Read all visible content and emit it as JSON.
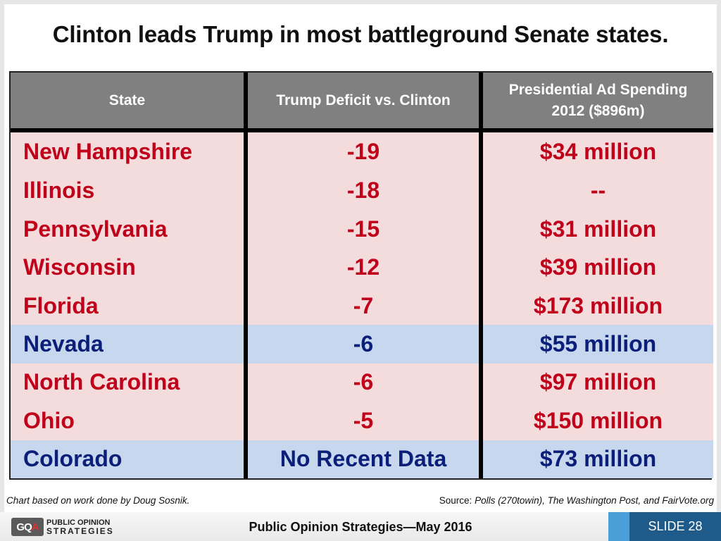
{
  "title": "Clinton leads Trump in most battleground Senate states.",
  "chart_data": {
    "type": "table",
    "columns": [
      "State",
      "Trump Deficit vs. Clinton",
      "Presidential Ad Spending 2012 ($896m)"
    ],
    "rows": [
      {
        "state": "New Hampshire",
        "deficit": "-19",
        "spending": "$34 million",
        "highlight": "red"
      },
      {
        "state": "Illinois",
        "deficit": "-18",
        "spending": "--",
        "highlight": "red"
      },
      {
        "state": "Pennsylvania",
        "deficit": "-15",
        "spending": "$31 million",
        "highlight": "red"
      },
      {
        "state": "Wisconsin",
        "deficit": "-12",
        "spending": "$39 million",
        "highlight": "red"
      },
      {
        "state": "Florida",
        "deficit": "-7",
        "spending": "$173 million",
        "highlight": "red"
      },
      {
        "state": "Nevada",
        "deficit": "-6",
        "spending": "$55 million",
        "highlight": "blue"
      },
      {
        "state": "North Carolina",
        "deficit": "-6",
        "spending": "$97 million",
        "highlight": "red"
      },
      {
        "state": "Ohio",
        "deficit": "-5",
        "spending": "$150 million",
        "highlight": "red"
      },
      {
        "state": "Colorado",
        "deficit": "No Recent Data",
        "spending": "$73 million",
        "highlight": "blue"
      }
    ],
    "colors": {
      "red_row_bg": "#f4dcdc",
      "red_text": "#c0001a",
      "blue_row_bg": "#c7d8ee",
      "blue_text": "#0b1f7a",
      "header_bg": "#808080"
    }
  },
  "header": {
    "col1": "State",
    "col2": "Trump Deficit vs. Clinton",
    "col3_line1": "Presidential Ad Spending",
    "col3_line2": "2012 ($896m)"
  },
  "footnotes": {
    "left": "Chart based on work done by Doug Sosnik.",
    "source_prefix": "Source: ",
    "source_text": "Polls (270towin), The Washington Post, and FairVote.org"
  },
  "footer": {
    "logo_line1": "PUBLIC OPINION",
    "logo_line2": "STRATEGIES",
    "center": "Public Opinion Strategies—May 2016",
    "slide": "SLIDE 28"
  }
}
